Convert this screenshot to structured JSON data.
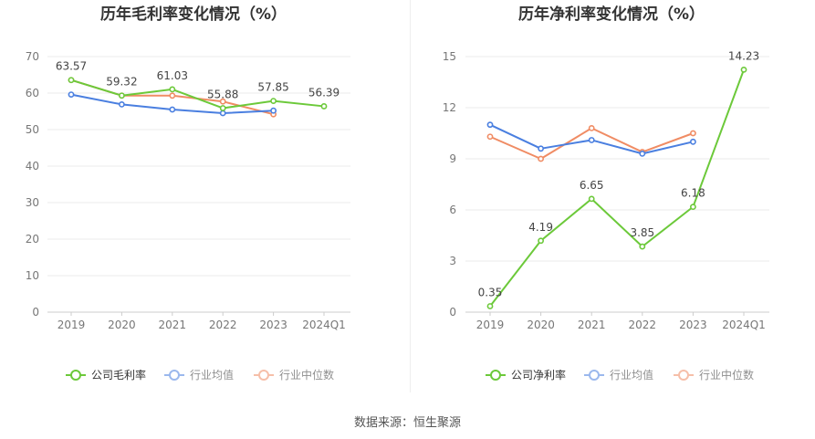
{
  "source": "数据来源：恒生聚源",
  "colors": {
    "company": "#6cc93a",
    "avg": "#4a7fe0",
    "median": "#f08c64"
  },
  "chart_data": [
    {
      "type": "line",
      "title": "历年毛利率变化情况（%）",
      "categories": [
        "2019",
        "2020",
        "2021",
        "2022",
        "2023",
        "2024Q1"
      ],
      "ylim": [
        0,
        70
      ],
      "yticks": [
        0,
        10,
        20,
        30,
        40,
        50,
        60,
        70
      ],
      "grid": true,
      "legend_position": "bottom",
      "series": [
        {
          "name": "公司毛利率",
          "color_key": "company",
          "labels": true,
          "values": [
            63.57,
            59.32,
            61.03,
            55.88,
            57.85,
            56.39
          ]
        },
        {
          "name": "行业均值",
          "color_key": "avg",
          "labels": false,
          "values": [
            59.6,
            56.9,
            55.5,
            54.5,
            55.2,
            null
          ]
        },
        {
          "name": "行业中位数",
          "color_key": "median",
          "labels": false,
          "values": [
            63.57,
            59.32,
            59.3,
            57.7,
            54.2,
            null
          ]
        }
      ]
    },
    {
      "type": "line",
      "title": "历年净利率变化情况（%）",
      "categories": [
        "2019",
        "2020",
        "2021",
        "2022",
        "2023",
        "2024Q1"
      ],
      "ylim": [
        0,
        15
      ],
      "yticks": [
        0,
        3,
        6,
        9,
        12,
        15
      ],
      "grid": true,
      "legend_position": "bottom",
      "series": [
        {
          "name": "公司净利率",
          "color_key": "company",
          "labels": true,
          "values": [
            0.35,
            4.19,
            6.65,
            3.85,
            6.18,
            14.23
          ]
        },
        {
          "name": "行业均值",
          "color_key": "avg",
          "labels": false,
          "values": [
            11.0,
            9.6,
            10.1,
            9.3,
            10.0,
            null
          ]
        },
        {
          "name": "行业中位数",
          "color_key": "median",
          "labels": false,
          "values": [
            10.3,
            9.0,
            10.8,
            9.4,
            10.5,
            null
          ]
        }
      ]
    }
  ]
}
